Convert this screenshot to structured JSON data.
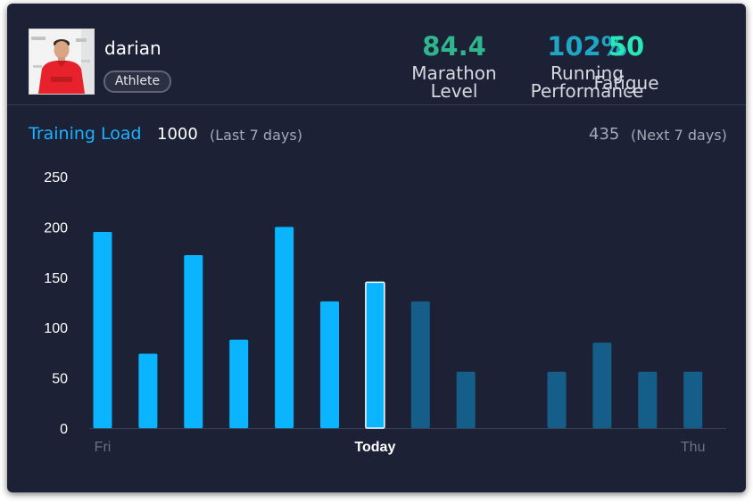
{
  "profile": {
    "name": "darian",
    "role": "Athlete"
  },
  "stats": [
    {
      "value": "84.4",
      "label_lines": [
        "Marathon",
        "Level"
      ],
      "color": "#2fb68e"
    },
    {
      "value": "102%",
      "label_lines": [
        "Running",
        "Performance"
      ],
      "color": "#1fa6c4"
    },
    {
      "value": "50",
      "label_lines": [
        "Fatigue"
      ],
      "color": "#2ae8b5"
    }
  ],
  "training_load": {
    "title": "Training Load",
    "last_value": "1000",
    "last_period": "(Last 7 days)",
    "next_value": "435",
    "next_period": "(Next 7 days)"
  },
  "colors": {
    "card_background": "#1c2136",
    "past_bar": "#0ab4ff",
    "future_bar": "#155e8a",
    "today_border": "#ffffff"
  },
  "chart_data": {
    "type": "bar",
    "categories": [
      "Fri",
      "",
      "",
      "",
      "",
      "",
      "Today",
      "",
      "",
      "",
      "",
      "",
      "",
      "Thu"
    ],
    "values": [
      195,
      74,
      172,
      88,
      200,
      126,
      145,
      126,
      56,
      0,
      56,
      85,
      56,
      56
    ],
    "status": [
      "past",
      "past",
      "past",
      "past",
      "past",
      "past",
      "today",
      "future",
      "future",
      "future",
      "future",
      "future",
      "future",
      "future"
    ],
    "y_ticks": [
      0,
      50,
      100,
      150,
      200,
      250
    ],
    "ylim": [
      0,
      250
    ],
    "grid": false,
    "title": "",
    "xlabel": "",
    "ylabel": ""
  }
}
